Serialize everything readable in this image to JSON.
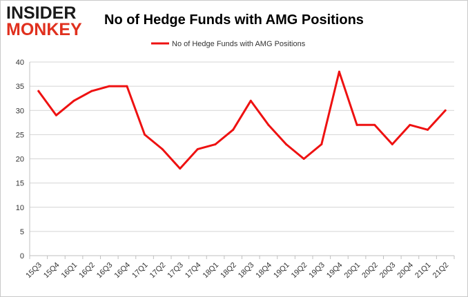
{
  "logo": {
    "line1": "INSIDER",
    "line2": "MONKEY"
  },
  "chart_data": {
    "type": "line",
    "title": "No of Hedge Funds with AMG Positions",
    "xlabel": "",
    "ylabel": "",
    "ylim": [
      0,
      40
    ],
    "yticks": [
      0,
      5,
      10,
      15,
      20,
      25,
      30,
      35,
      40
    ],
    "grid": true,
    "legend_position": "top",
    "categories": [
      "15Q3",
      "15Q4",
      "16Q1",
      "16Q2",
      "16Q3",
      "16Q4",
      "17Q1",
      "17Q2",
      "17Q3",
      "17Q4",
      "18Q1",
      "18Q2",
      "18Q3",
      "18Q4",
      "19Q1",
      "19Q2",
      "19Q3",
      "19Q4",
      "20Q1",
      "20Q2",
      "20Q3",
      "20Q4",
      "21Q1",
      "21Q2"
    ],
    "series": [
      {
        "name": "No of Hedge Funds with AMG Positions",
        "color": "#ee1111",
        "values": [
          34,
          29,
          32,
          34,
          35,
          35,
          25,
          22,
          18,
          22,
          23,
          26,
          32,
          27,
          23,
          20,
          23,
          38,
          27,
          27,
          23,
          27,
          26,
          30
        ]
      }
    ]
  }
}
